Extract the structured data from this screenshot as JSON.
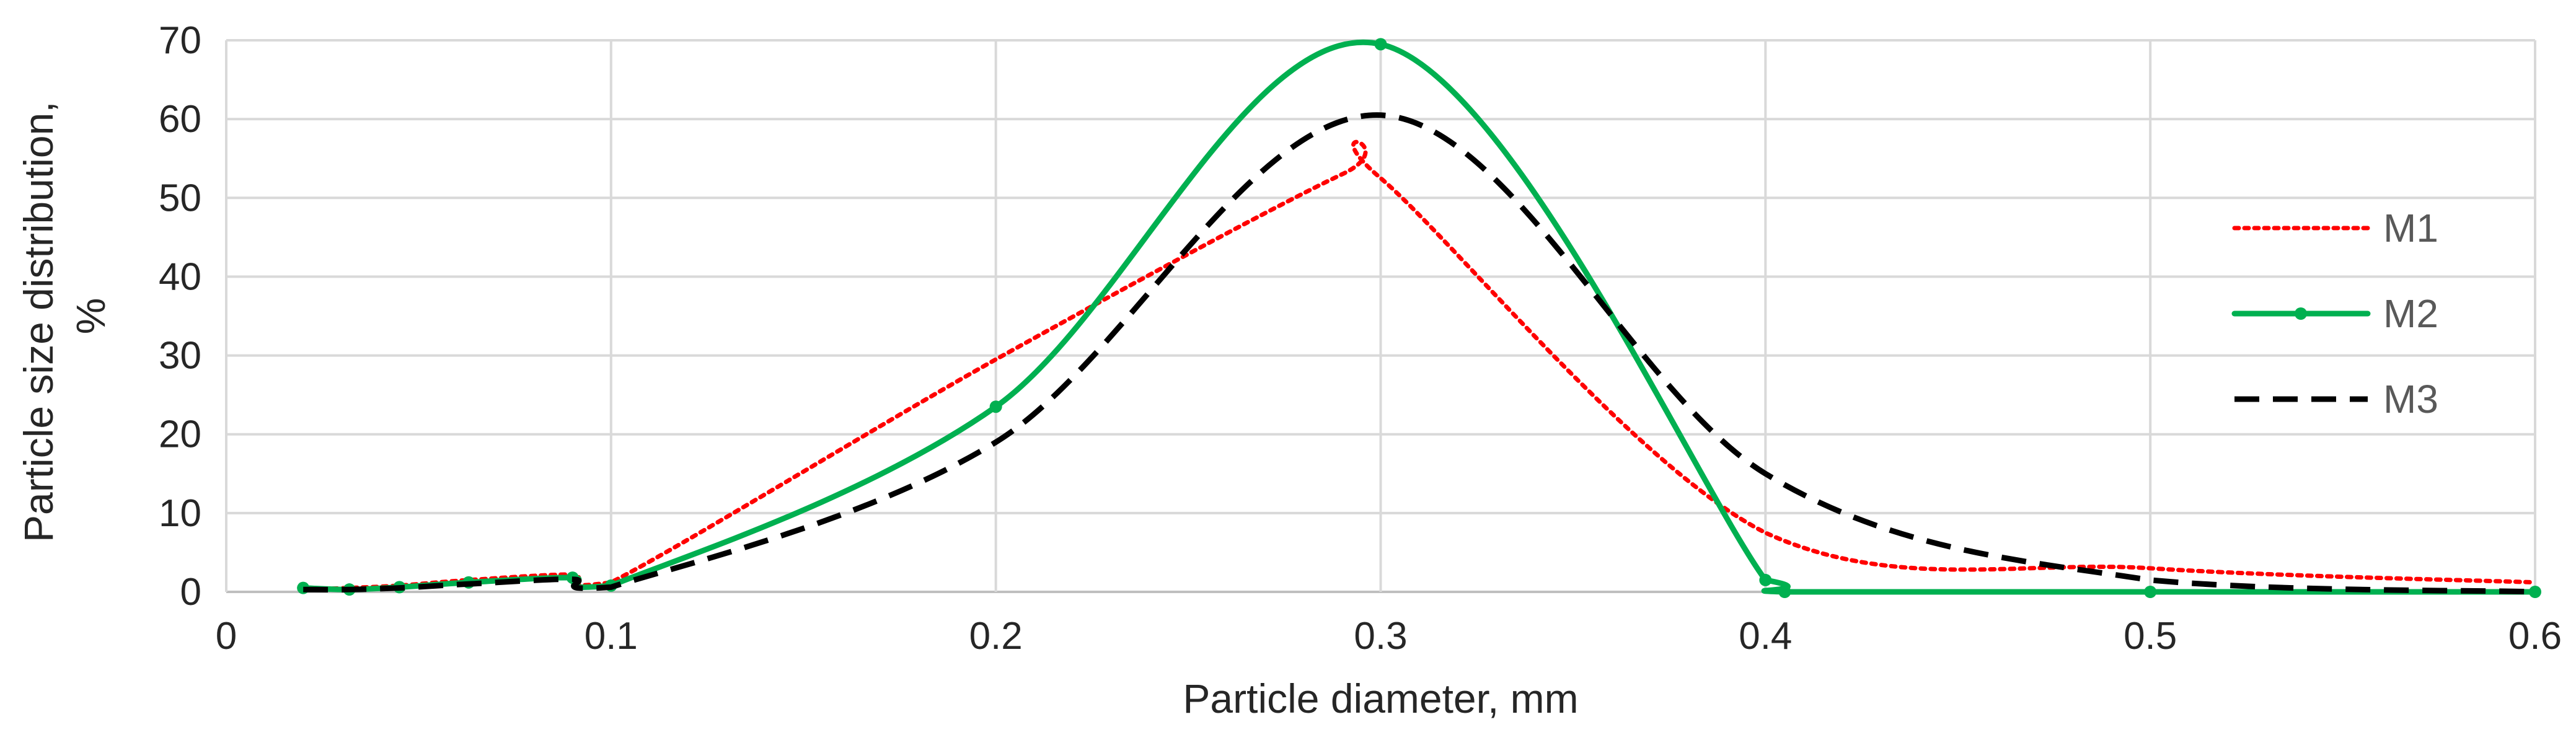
{
  "chart_data": {
    "type": "line",
    "xlabel": "Particle diameter, mm",
    "ylabel": [
      "Particle size distribution,",
      "%"
    ],
    "xlim": [
      0,
      0.6
    ],
    "ylim": [
      0,
      70
    ],
    "x_ticks": [
      "0",
      "0.1",
      "0.2",
      "0.3",
      "0.4",
      "0.5",
      "0.6"
    ],
    "y_ticks": [
      "0",
      "10",
      "20",
      "30",
      "40",
      "50",
      "60",
      "70"
    ],
    "grid": true,
    "legend_position": "right",
    "series": [
      {
        "name": "M1",
        "color": "#ff0000",
        "style": "dotted",
        "markers": false,
        "x": [
          0.02,
          0.032,
          0.045,
          0.063,
          0.09,
          0.1,
          0.2,
          0.29,
          0.3,
          0.4,
          0.5,
          0.6
        ],
        "y": [
          0.3,
          0.5,
          0.8,
          1.5,
          2.2,
          1.2,
          29.5,
          53,
          52.5,
          7.5,
          3,
          1.2
        ]
      },
      {
        "name": "M2",
        "color": "#00b050",
        "style": "solid",
        "markers": true,
        "x": [
          0.02,
          0.032,
          0.045,
          0.063,
          0.09,
          0.1,
          0.2,
          0.3,
          0.4,
          0.405,
          0.5,
          0.6
        ],
        "y": [
          0.5,
          0.3,
          0.6,
          1.2,
          1.8,
          0.8,
          23.5,
          69.5,
          1.5,
          0,
          0,
          0
        ]
      },
      {
        "name": "M3",
        "color": "#000000",
        "style": "dashed",
        "markers": false,
        "x": [
          0.02,
          0.032,
          0.045,
          0.063,
          0.09,
          0.1,
          0.2,
          0.3,
          0.4,
          0.5,
          0.6
        ],
        "y": [
          0.3,
          0.3,
          0.5,
          1.0,
          1.6,
          0.6,
          19,
          60.5,
          15,
          1.5,
          0
        ]
      }
    ]
  }
}
